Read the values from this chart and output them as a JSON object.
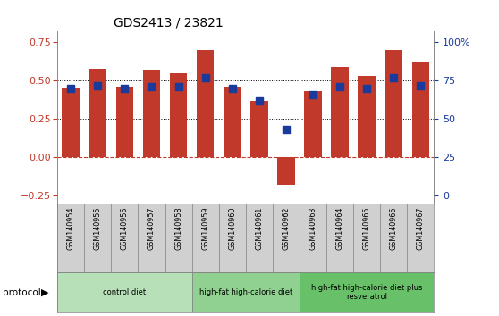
{
  "title": "GDS2413 / 23821",
  "samples": [
    "GSM140954",
    "GSM140955",
    "GSM140956",
    "GSM140957",
    "GSM140958",
    "GSM140959",
    "GSM140960",
    "GSM140961",
    "GSM140962",
    "GSM140963",
    "GSM140964",
    "GSM140965",
    "GSM140966",
    "GSM140967"
  ],
  "zscore": [
    0.45,
    0.58,
    0.46,
    0.57,
    0.55,
    0.7,
    0.46,
    0.37,
    -0.18,
    0.43,
    0.59,
    0.53,
    0.7,
    0.62
  ],
  "percentile_right": [
    70,
    72,
    70,
    71,
    71,
    77,
    70,
    62,
    43,
    66,
    71,
    70,
    77,
    72
  ],
  "groups": [
    {
      "label": "control diet",
      "start": 0,
      "end": 5,
      "color": "#b8e0b8"
    },
    {
      "label": "high-fat high-calorie diet",
      "start": 5,
      "end": 9,
      "color": "#90d090"
    },
    {
      "label": "high-fat high-calorie diet plus\nresveratrol",
      "start": 9,
      "end": 14,
      "color": "#68c068"
    }
  ],
  "bar_color": "#c0392b",
  "dot_color": "#1a3a9c",
  "ylim_left": [
    -0.3,
    0.82
  ],
  "ylim_right": [
    -9.375,
    100
  ],
  "yticks_left": [
    -0.25,
    0,
    0.25,
    0.5,
    0.75
  ],
  "yticks_right": [
    0,
    25,
    50,
    75,
    100
  ],
  "ytick_labels_right": [
    "0",
    "25",
    "50",
    "75",
    "100%"
  ],
  "hlines": [
    0.25,
    0.5
  ],
  "left_tick_color": "#c0392b",
  "right_tick_color": "#1a3a9c",
  "bar_width": 0.65,
  "dot_size": 30,
  "sample_box_color": "#d0d0d0",
  "group1_color": "#b8e4b8",
  "group2_color": "#88d888",
  "group3_color": "#5cc85c"
}
